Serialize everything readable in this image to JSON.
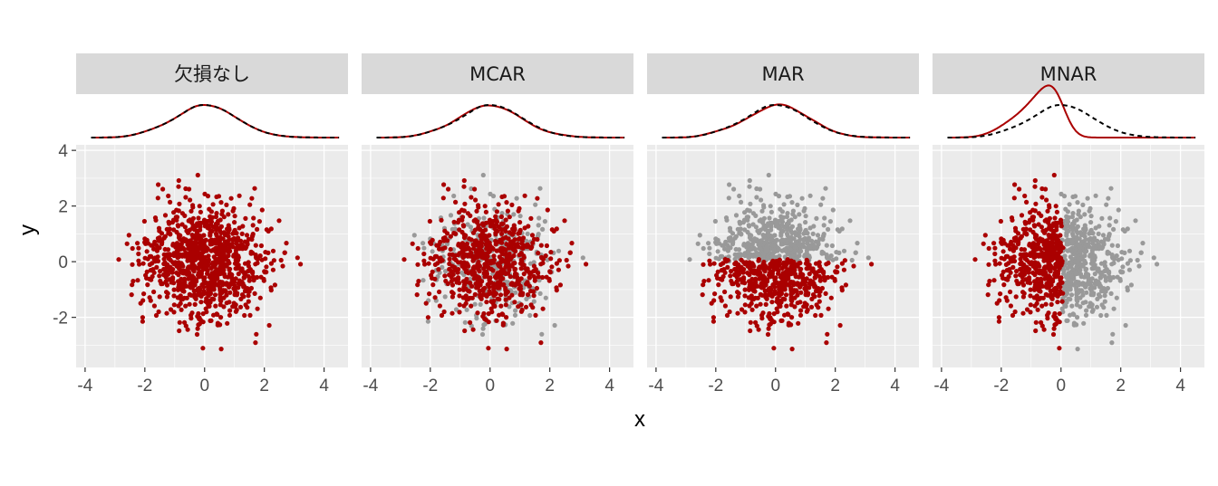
{
  "chart_data": {
    "type": "scatter",
    "xlabel": "x",
    "ylabel": "y",
    "xlim": [
      -4.3,
      4.8
    ],
    "ylim": [
      -3.8,
      4.2
    ],
    "x_ticks": [
      -4,
      -2,
      0,
      2,
      4
    ],
    "y_ticks": [
      -2,
      0,
      2,
      4
    ],
    "y_ticks_top_only": [
      4
    ],
    "grid": true,
    "facets": [
      "欠損なし",
      "MCAR",
      "MAR",
      "MNAR"
    ],
    "colors": {
      "observed": "#aa0000",
      "missing": "#999999",
      "density_observed": "#aa0000",
      "density_complete": "#000000",
      "panel_bg": "#ebebeb",
      "strip_bg": "#d9d9d9",
      "grid": "#ffffff"
    },
    "marginal_density": "x",
    "n_points": 1000,
    "distribution": "bivariate normal, mean 0, sd 1, independent",
    "missing_rules": {
      "欠損なし": "none",
      "MCAR": "random ~30% missing",
      "MAR": "missing when y > 0 (approx.)",
      "MNAR": "missing when x > 0 (approx.)"
    }
  }
}
